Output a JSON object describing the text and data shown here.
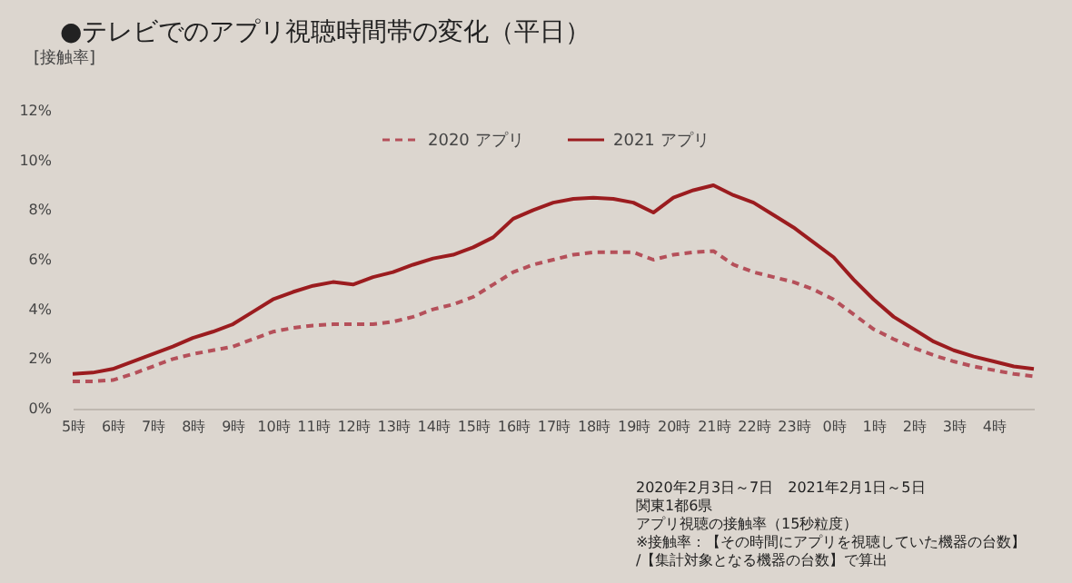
{
  "chart_data": {
    "type": "line",
    "title": "●テレビでのアプリ視聴時間帯の変化（平日）",
    "ylabel": "[接触率]",
    "categories": [
      "5時",
      null,
      "6時",
      null,
      "7時",
      null,
      "8時",
      null,
      "9時",
      null,
      "10時",
      null,
      "11時",
      null,
      "12時",
      null,
      "13時",
      null,
      "14時",
      null,
      "15時",
      null,
      "16時",
      null,
      "17時",
      null,
      "18時",
      null,
      "19時",
      null,
      "20時",
      null,
      "21時",
      null,
      "22時",
      null,
      "23時",
      null,
      "0時",
      null,
      "1時",
      null,
      "2時",
      null,
      "3時",
      null,
      "4時",
      null,
      null
    ],
    "series": [
      {
        "name": "2020 アプリ",
        "color": "#b5505a",
        "line_style": "dashed",
        "values": [
          1.1,
          1.1,
          1.15,
          1.4,
          1.7,
          2.0,
          2.2,
          2.35,
          2.5,
          2.8,
          3.1,
          3.25,
          3.35,
          3.4,
          3.4,
          3.4,
          3.5,
          3.7,
          4.0,
          4.2,
          4.5,
          5.0,
          5.5,
          5.8,
          6.0,
          6.2,
          6.3,
          6.3,
          6.3,
          6.0,
          6.2,
          6.3,
          6.35,
          5.8,
          5.5,
          5.3,
          5.1,
          4.8,
          4.4,
          3.8,
          3.2,
          2.8,
          2.45,
          2.15,
          1.9,
          1.7,
          1.55,
          1.4,
          1.3
        ]
      },
      {
        "name": "2021 アプリ",
        "color": "#9b1c1f",
        "line_style": "solid",
        "values": [
          1.4,
          1.45,
          1.6,
          1.9,
          2.2,
          2.5,
          2.85,
          3.1,
          3.4,
          3.9,
          4.4,
          4.7,
          4.95,
          5.1,
          5.0,
          5.3,
          5.5,
          5.8,
          6.05,
          6.2,
          6.5,
          6.9,
          7.65,
          8.0,
          8.3,
          8.45,
          8.5,
          8.45,
          8.3,
          7.9,
          8.5,
          8.8,
          9.0,
          8.6,
          8.3,
          7.8,
          7.3,
          6.7,
          6.1,
          5.2,
          4.4,
          3.7,
          3.2,
          2.7,
          2.35,
          2.1,
          1.9,
          1.7,
          1.6
        ]
      }
    ],
    "ylim": [
      0,
      12
    ],
    "yticks": [
      {
        "value": 0,
        "label": "0%"
      },
      {
        "value": 2,
        "label": "2%"
      },
      {
        "value": 4,
        "label": "4%"
      },
      {
        "value": 6,
        "label": "6%"
      },
      {
        "value": 8,
        "label": "8%"
      },
      {
        "value": 10,
        "label": "10%"
      },
      {
        "value": 12,
        "label": "12%"
      }
    ],
    "legend": "top",
    "marker": "none",
    "annotations": [
      "2020年2月3日～7日　2021年2月1日～5日",
      "関東1都6県",
      "アプリ視聴の接触率（15秒粒度）",
      "※接触率：【その時間にアプリを視聴していた機器の台数】",
      "　　　　　/【集計対象となる機器の台数】で算出"
    ]
  }
}
